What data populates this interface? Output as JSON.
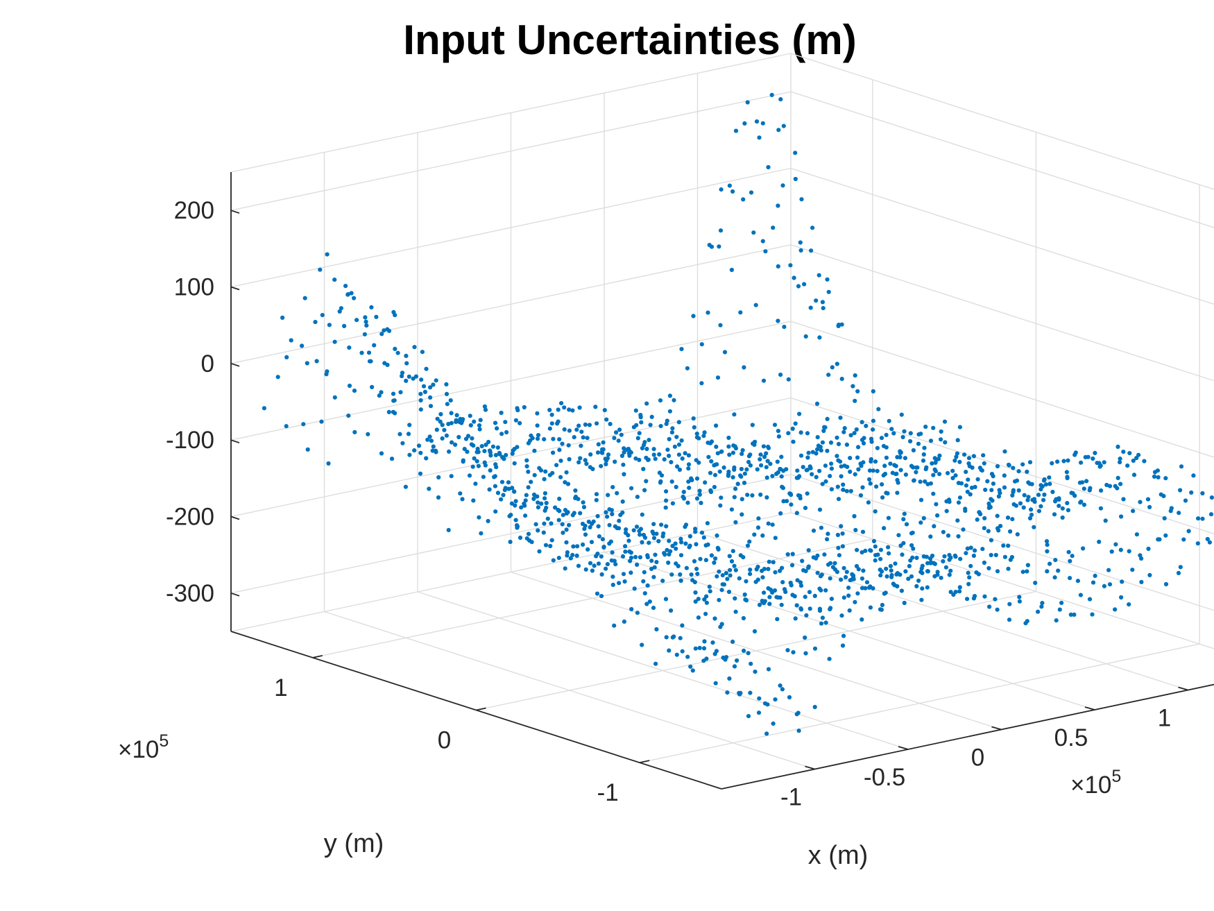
{
  "chart_data": {
    "type": "scatter",
    "title": "Input Uncertainties (m)",
    "xlabel": "x (m)",
    "ylabel": "y (m)",
    "zlabel": "",
    "x_multiplier_label": "×10",
    "x_multiplier_exp": "5",
    "y_multiplier_label": "×10",
    "y_multiplier_exp": "5",
    "xlim": [
      -150000,
      150000
    ],
    "ylim": [
      -150000,
      150000
    ],
    "zlim": [
      -350,
      250
    ],
    "x_ticks": [
      {
        "value": -100000,
        "label": "-1"
      },
      {
        "value": -50000,
        "label": "-0.5"
      },
      {
        "value": 0,
        "label": "0"
      },
      {
        "value": 50000,
        "label": "0.5"
      },
      {
        "value": 100000,
        "label": "1"
      }
    ],
    "y_ticks": [
      {
        "value": -100000,
        "label": "-1"
      },
      {
        "value": 0,
        "label": "0"
      },
      {
        "value": 100000,
        "label": "1"
      }
    ],
    "z_ticks": [
      {
        "value": -300,
        "label": "-300"
      },
      {
        "value": -200,
        "label": "-200"
      },
      {
        "value": -100,
        "label": "-100"
      },
      {
        "value": 0,
        "label": "0"
      },
      {
        "value": 100,
        "label": "100"
      },
      {
        "value": 200,
        "label": "200"
      }
    ],
    "grid": true,
    "marker_color": "#0072BD",
    "series": [
      {
        "grid_points_per_axis": 41,
        "x_range": [
          -140000,
          140000
        ],
        "y_range": [
          -140000,
          140000
        ],
        "sample_points": [
          {
            "x": -140000,
            "y": 140000,
            "z": -100
          },
          {
            "x": -130000,
            "y": 110000,
            "z": 0
          },
          {
            "x": -120000,
            "y": 60000,
            "z": 100
          },
          {
            "x": -110000,
            "y": 0,
            "z": 150
          },
          {
            "x": -100000,
            "y": -60000,
            "z": 40
          },
          {
            "x": -100000,
            "y": -130000,
            "z": -330
          },
          {
            "x": -60000,
            "y": -60000,
            "z": -220
          },
          {
            "x": 0,
            "y": 0,
            "z": -170
          },
          {
            "x": 50000,
            "y": 40000,
            "z": -150
          },
          {
            "x": 100000,
            "y": 80000,
            "z": -160
          },
          {
            "x": 110000,
            "y": 120000,
            "z": 230
          },
          {
            "x": 140000,
            "y": -140000,
            "z": -180
          }
        ]
      }
    ]
  }
}
